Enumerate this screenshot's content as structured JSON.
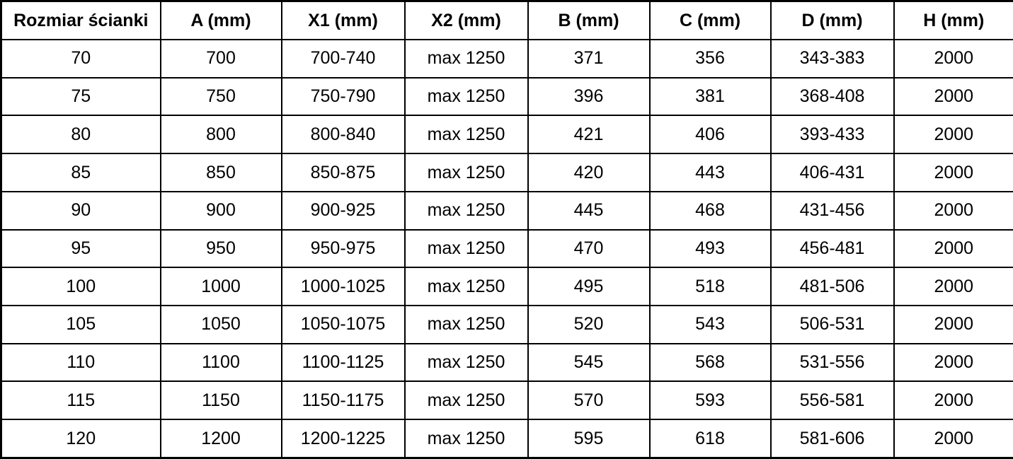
{
  "table": {
    "columns": [
      "Rozmiar ścianki",
      "A (mm)",
      "X1 (mm)",
      "X2 (mm)",
      "B (mm)",
      "C (mm)",
      "D (mm)",
      "H (mm)"
    ],
    "rows": [
      [
        "70",
        "700",
        "700-740",
        "max 1250",
        "371",
        "356",
        "343-383",
        "2000"
      ],
      [
        "75",
        "750",
        "750-790",
        "max 1250",
        "396",
        "381",
        "368-408",
        "2000"
      ],
      [
        "80",
        "800",
        "800-840",
        "max 1250",
        "421",
        "406",
        "393-433",
        "2000"
      ],
      [
        "85",
        "850",
        "850-875",
        "max 1250",
        "420",
        "443",
        "406-431",
        "2000"
      ],
      [
        "90",
        "900",
        "900-925",
        "max 1250",
        "445",
        "468",
        "431-456",
        "2000"
      ],
      [
        "95",
        "950",
        "950-975",
        "max 1250",
        "470",
        "493",
        "456-481",
        "2000"
      ],
      [
        "100",
        "1000",
        "1000-1025",
        "max 1250",
        "495",
        "518",
        "481-506",
        "2000"
      ],
      [
        "105",
        "1050",
        "1050-1075",
        "max 1250",
        "520",
        "543",
        "506-531",
        "2000"
      ],
      [
        "110",
        "1100",
        "1100-1125",
        "max 1250",
        "545",
        "568",
        "531-556",
        "2000"
      ],
      [
        "115",
        "1150",
        "1150-1175",
        "max 1250",
        "570",
        "593",
        "556-581",
        "2000"
      ],
      [
        "120",
        "1200",
        "1200-1225",
        "max 1250",
        "595",
        "618",
        "581-606",
        "2000"
      ]
    ]
  },
  "colors": {
    "border": "#000000",
    "text": "#000000",
    "background": "#ffffff"
  }
}
